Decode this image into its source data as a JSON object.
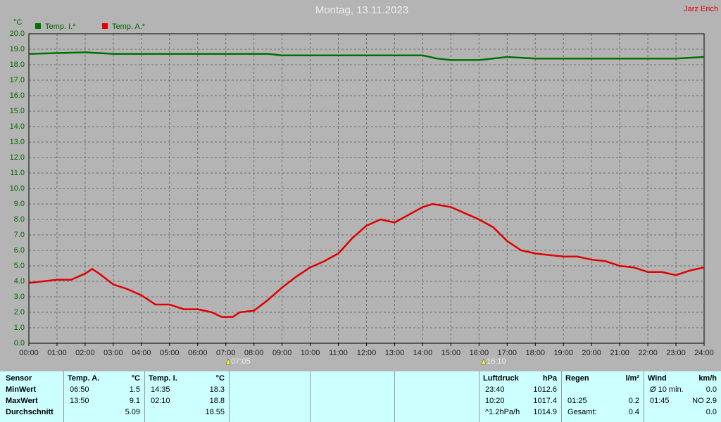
{
  "chart_data": {
    "type": "line",
    "title": "Montag, 13.11.2023",
    "author": "Jarz Erich",
    "y_label": "°C",
    "legend": "top-left",
    "grid": true,
    "xlim": [
      0,
      24
    ],
    "ylim": [
      0,
      20
    ],
    "xticks": [
      {
        "value": 0,
        "label": "00:00"
      },
      {
        "value": 1,
        "label": "01:00"
      },
      {
        "value": 2,
        "label": "02:00"
      },
      {
        "value": 3,
        "label": "03:00"
      },
      {
        "value": 4,
        "label": "04:00"
      },
      {
        "value": 5,
        "label": "05:00"
      },
      {
        "value": 6,
        "label": "06:00"
      },
      {
        "value": 7,
        "label": "07:00"
      },
      {
        "value": 8,
        "label": "08:00"
      },
      {
        "value": 9,
        "label": "09:00"
      },
      {
        "value": 10,
        "label": "10:00"
      },
      {
        "value": 11,
        "label": "11:00"
      },
      {
        "value": 12,
        "label": "12:00"
      },
      {
        "value": 13,
        "label": "13:00"
      },
      {
        "value": 14,
        "label": "14:00"
      },
      {
        "value": 15,
        "label": "15:00"
      },
      {
        "value": 16,
        "label": "16:00"
      },
      {
        "value": 17,
        "label": "17:00"
      },
      {
        "value": 18,
        "label": "18:00"
      },
      {
        "value": 19,
        "label": "19:00"
      },
      {
        "value": 20,
        "label": "20:00"
      },
      {
        "value": 21,
        "label": "21:00"
      },
      {
        "value": 22,
        "label": "22:00"
      },
      {
        "value": 23,
        "label": "23:00"
      },
      {
        "value": 24,
        "label": "24:00"
      }
    ],
    "yticks": [
      {
        "value": 0,
        "label": "0.0"
      },
      {
        "value": 1,
        "label": "1.0"
      },
      {
        "value": 2,
        "label": "2.0"
      },
      {
        "value": 3,
        "label": "3.0"
      },
      {
        "value": 4,
        "label": "4.0"
      },
      {
        "value": 5,
        "label": "5.0"
      },
      {
        "value": 6,
        "label": "6.0"
      },
      {
        "value": 7,
        "label": "7.0"
      },
      {
        "value": 8,
        "label": "8.0"
      },
      {
        "value": 9,
        "label": "9.0"
      },
      {
        "value": 10,
        "label": "10.0"
      },
      {
        "value": 11,
        "label": "11.0"
      },
      {
        "value": 12,
        "label": "12.0"
      },
      {
        "value": 13,
        "label": "13.0"
      },
      {
        "value": 14,
        "label": "14.0"
      },
      {
        "value": 15,
        "label": "15.0"
      },
      {
        "value": 16,
        "label": "16.0"
      },
      {
        "value": 17,
        "label": "17.0"
      },
      {
        "value": 18,
        "label": "18.0"
      },
      {
        "value": 19,
        "label": "19.0"
      },
      {
        "value": 20,
        "label": "20.0"
      }
    ],
    "annotations": [
      {
        "label": "07:05",
        "color": "#ffff00"
      },
      {
        "label": "16:10",
        "color": "#ffff00"
      }
    ],
    "series": [
      {
        "name": "Temp. I.*",
        "color": "#007000",
        "x": [
          0,
          2,
          3,
          8.5,
          9,
          14,
          14.5,
          15,
          16,
          17,
          18,
          23,
          24
        ],
        "values": [
          18.7,
          18.8,
          18.7,
          18.7,
          18.6,
          18.6,
          18.4,
          18.3,
          18.3,
          18.5,
          18.4,
          18.4,
          18.5
        ]
      },
      {
        "name": "Temp. A.*",
        "color": "#e00000",
        "x": [
          0,
          0.5,
          1,
          1.5,
          2,
          2.25,
          2.5,
          3,
          3.5,
          4,
          4.5,
          5,
          5.5,
          6,
          6.5,
          6.85,
          7.25,
          7.5,
          8,
          8.5,
          9,
          9.5,
          10,
          10.5,
          11,
          11.5,
          12,
          12.5,
          13,
          13.5,
          14,
          14.35,
          15,
          15.5,
          16,
          16.5,
          17,
          17.5,
          18,
          18.5,
          19,
          19.5,
          20,
          20.5,
          21,
          21.5,
          22,
          22.5,
          23,
          23.5,
          24
        ],
        "values": [
          3.9,
          4.0,
          4.1,
          4.1,
          4.5,
          4.8,
          4.5,
          3.8,
          3.5,
          3.1,
          2.5,
          2.5,
          2.2,
          2.2,
          2.0,
          1.7,
          1.7,
          2.0,
          2.1,
          2.8,
          3.6,
          4.3,
          4.9,
          5.3,
          5.8,
          6.8,
          7.6,
          8.0,
          7.8,
          8.3,
          8.8,
          9.0,
          8.8,
          8.4,
          8.0,
          7.5,
          6.6,
          6.0,
          5.8,
          5.7,
          5.6,
          5.6,
          5.4,
          5.3,
          5.0,
          4.9,
          4.6,
          4.6,
          4.4,
          4.7,
          4.9
        ]
      }
    ]
  },
  "table": {
    "sensor": {
      "title": "Sensor",
      "rows": [
        "MinWert",
        "MaxWert",
        "Durchschnitt"
      ]
    },
    "groups": [
      {
        "title": "Temp. A.",
        "unit": "°C",
        "rows": [
          [
            "06:50",
            "1.5"
          ],
          [
            "13:50",
            "9.1"
          ],
          [
            null,
            "5.09"
          ]
        ]
      },
      {
        "title": "Temp. I.",
        "unit": "°C",
        "rows": [
          [
            "14:35",
            "18.3"
          ],
          [
            "02:10",
            "18.8"
          ],
          [
            null,
            "18.55"
          ]
        ]
      },
      {
        "title": "Luftdruck",
        "unit": "hPa",
        "rows": [
          [
            "23:40",
            "1012.6"
          ],
          [
            "10:20",
            "1017.4"
          ],
          [
            "^1.2hPa/h",
            "1014.9"
          ]
        ]
      },
      {
        "title": "Regen",
        "unit": "l/m²",
        "rows": [
          [
            null,
            null
          ],
          [
            "01:25",
            "0.2"
          ],
          [
            "Gesamt:",
            "0.4"
          ]
        ]
      },
      {
        "title": "Wind",
        "unit": "km/h",
        "rows": [
          [
            "Ø 10 min.",
            "0.0"
          ],
          [
            "01:45",
            "NO 2.9"
          ],
          [
            null,
            "0.0"
          ]
        ]
      }
    ]
  }
}
